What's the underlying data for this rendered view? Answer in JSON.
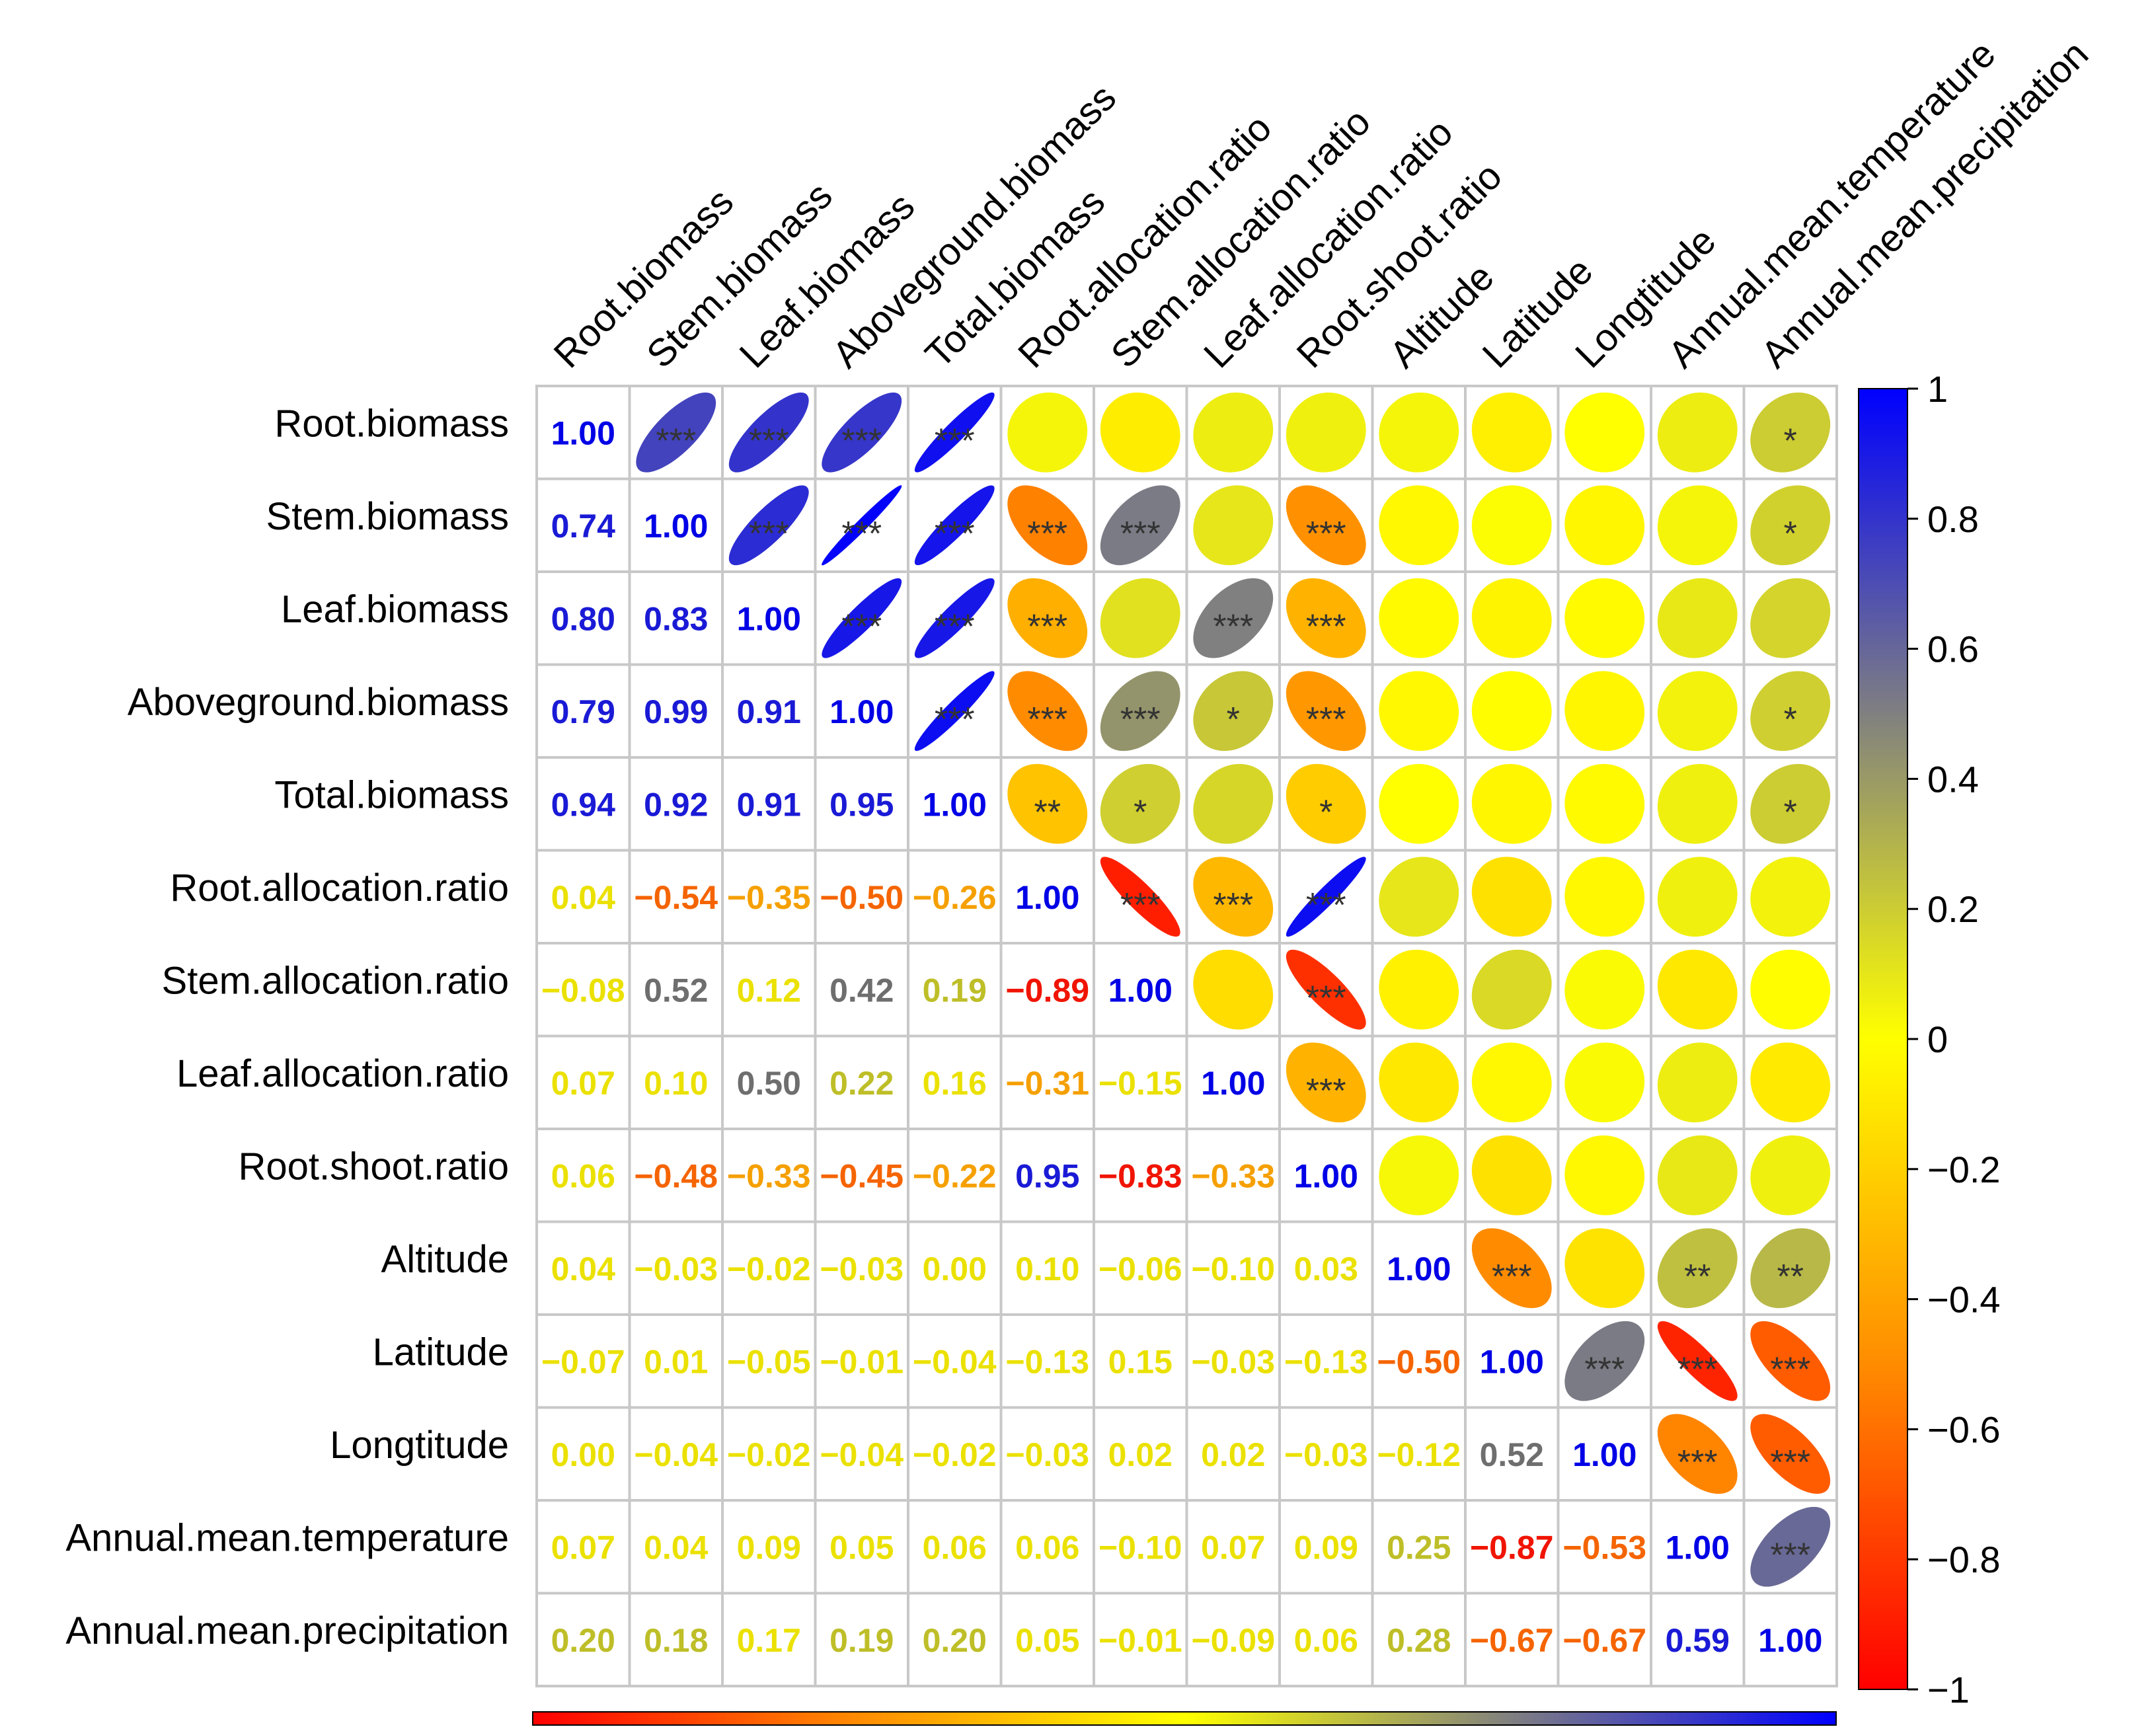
{
  "chart_data": {
    "type": "heatmap",
    "subtype": "correlation-matrix (upper: ellipses with significance stars, lower/diagonal: coefficients)",
    "variables": [
      "Root.biomass",
      "Stem.biomass",
      "Leaf.biomass",
      "Aboveground.biomass",
      "Total.biomass",
      "Root.allocation.ratio",
      "Stem.allocation.ratio",
      "Leaf.allocation.ratio",
      "Root.shoot.ratio",
      "Altitude",
      "Latitude",
      "Longtitude",
      "Annual.mean.temperature",
      "Annual.mean.precipitation"
    ],
    "lower_labels": [
      [
        "1.00"
      ],
      [
        "0.74",
        "1.00"
      ],
      [
        "0.80",
        "0.83",
        "1.00"
      ],
      [
        "0.79",
        "0.99",
        "0.91",
        "1.00"
      ],
      [
        "0.94",
        "0.92",
        "0.91",
        "0.95",
        "1.00"
      ],
      [
        "0.04",
        "−0.54",
        "−0.35",
        "−0.50",
        "−0.26",
        "1.00"
      ],
      [
        "−0.08",
        "0.52",
        "0.12",
        "0.42",
        "0.19",
        "−0.89",
        "1.00"
      ],
      [
        "0.07",
        "0.10",
        "0.50",
        "0.22",
        "0.16",
        "−0.31",
        "−0.15",
        "1.00"
      ],
      [
        "0.06",
        "−0.48",
        "−0.33",
        "−0.45",
        "−0.22",
        "0.95",
        "−0.83",
        "−0.33",
        "1.00"
      ],
      [
        "0.04",
        "−0.03",
        "−0.02",
        "−0.03",
        "0.00",
        "0.10",
        "−0.06",
        "−0.10",
        "0.03",
        "1.00"
      ],
      [
        "−0.07",
        "0.01",
        "−0.05",
        "−0.01",
        "−0.04",
        "−0.13",
        "0.15",
        "−0.03",
        "−0.13",
        "−0.50",
        "1.00"
      ],
      [
        "0.00",
        "−0.04",
        "−0.02",
        "−0.04",
        "−0.02",
        "−0.03",
        "0.02",
        "0.02",
        "−0.03",
        "−0.12",
        "0.52",
        "1.00"
      ],
      [
        "0.07",
        "0.04",
        "0.09",
        "0.05",
        "0.06",
        "0.06",
        "−0.10",
        "0.07",
        "0.09",
        "0.25",
        "−0.87",
        "−0.53",
        "1.00"
      ],
      [
        "0.20",
        "0.18",
        "0.17",
        "0.19",
        "0.20",
        "0.05",
        "−0.01",
        "−0.09",
        "0.06",
        "0.28",
        "−0.67",
        "−0.67",
        "0.59",
        "1.00"
      ]
    ],
    "significance": [
      [
        "",
        "***",
        "***",
        "***",
        "***",
        "",
        "",
        "",
        "",
        "",
        "",
        "",
        "",
        "*"
      ],
      [
        "",
        "",
        "***",
        "***",
        "***",
        "***",
        "***",
        "",
        "***",
        "",
        "",
        "",
        "",
        "*"
      ],
      [
        "",
        "",
        "",
        "***",
        "***",
        "***",
        "",
        "***",
        "***",
        "",
        "",
        "",
        "",
        ""
      ],
      [
        "",
        "",
        "",
        "",
        "***",
        "***",
        "***",
        "*",
        "***",
        "",
        "",
        "",
        "",
        "*"
      ],
      [
        "",
        "",
        "",
        "",
        "",
        "**",
        "*",
        "",
        "*",
        "",
        "",
        "",
        "",
        "*"
      ],
      [
        "",
        "",
        "",
        "",
        "",
        "",
        "***",
        "***",
        "***",
        "",
        "",
        "",
        "",
        ""
      ],
      [
        "",
        "",
        "",
        "",
        "",
        "",
        "",
        "",
        "***",
        "",
        "",
        "",
        "",
        ""
      ],
      [
        "",
        "",
        "",
        "",
        "",
        "",
        "",
        "",
        "***",
        "",
        "",
        "",
        "",
        ""
      ],
      [
        "",
        "",
        "",
        "",
        "",
        "",
        "",
        "",
        "",
        "",
        "",
        "",
        "",
        ""
      ],
      [
        "",
        "",
        "",
        "",
        "",
        "",
        "",
        "",
        "",
        "",
        "***",
        "",
        "**",
        "**"
      ],
      [
        "",
        "",
        "",
        "",
        "",
        "",
        "",
        "",
        "",
        "",
        "",
        "***",
        "***",
        "***"
      ],
      [
        "",
        "",
        "",
        "",
        "",
        "",
        "",
        "",
        "",
        "",
        "",
        "",
        "***",
        "***"
      ],
      [
        "",
        "",
        "",
        "",
        "",
        "",
        "",
        "",
        "",
        "",
        "",
        "",
        "",
        "***"
      ],
      [
        "",
        "",
        "",
        "",
        "",
        "",
        "",
        "",
        "",
        "",
        "",
        "",
        "",
        ""
      ]
    ],
    "colorbar": {
      "ticks": [
        "1",
        "0.8",
        "0.6",
        "0.4",
        "0.2",
        "0",
        "−0.2",
        "−0.4",
        "−0.6",
        "−0.8",
        "−1"
      ],
      "range": [
        -1,
        1
      ],
      "colors": {
        "neg": "#ff0000",
        "neg_mid": "#ff8c00",
        "zero": "#ffff00",
        "pos_mid": "#808080",
        "pos": "#0000ff"
      }
    }
  }
}
